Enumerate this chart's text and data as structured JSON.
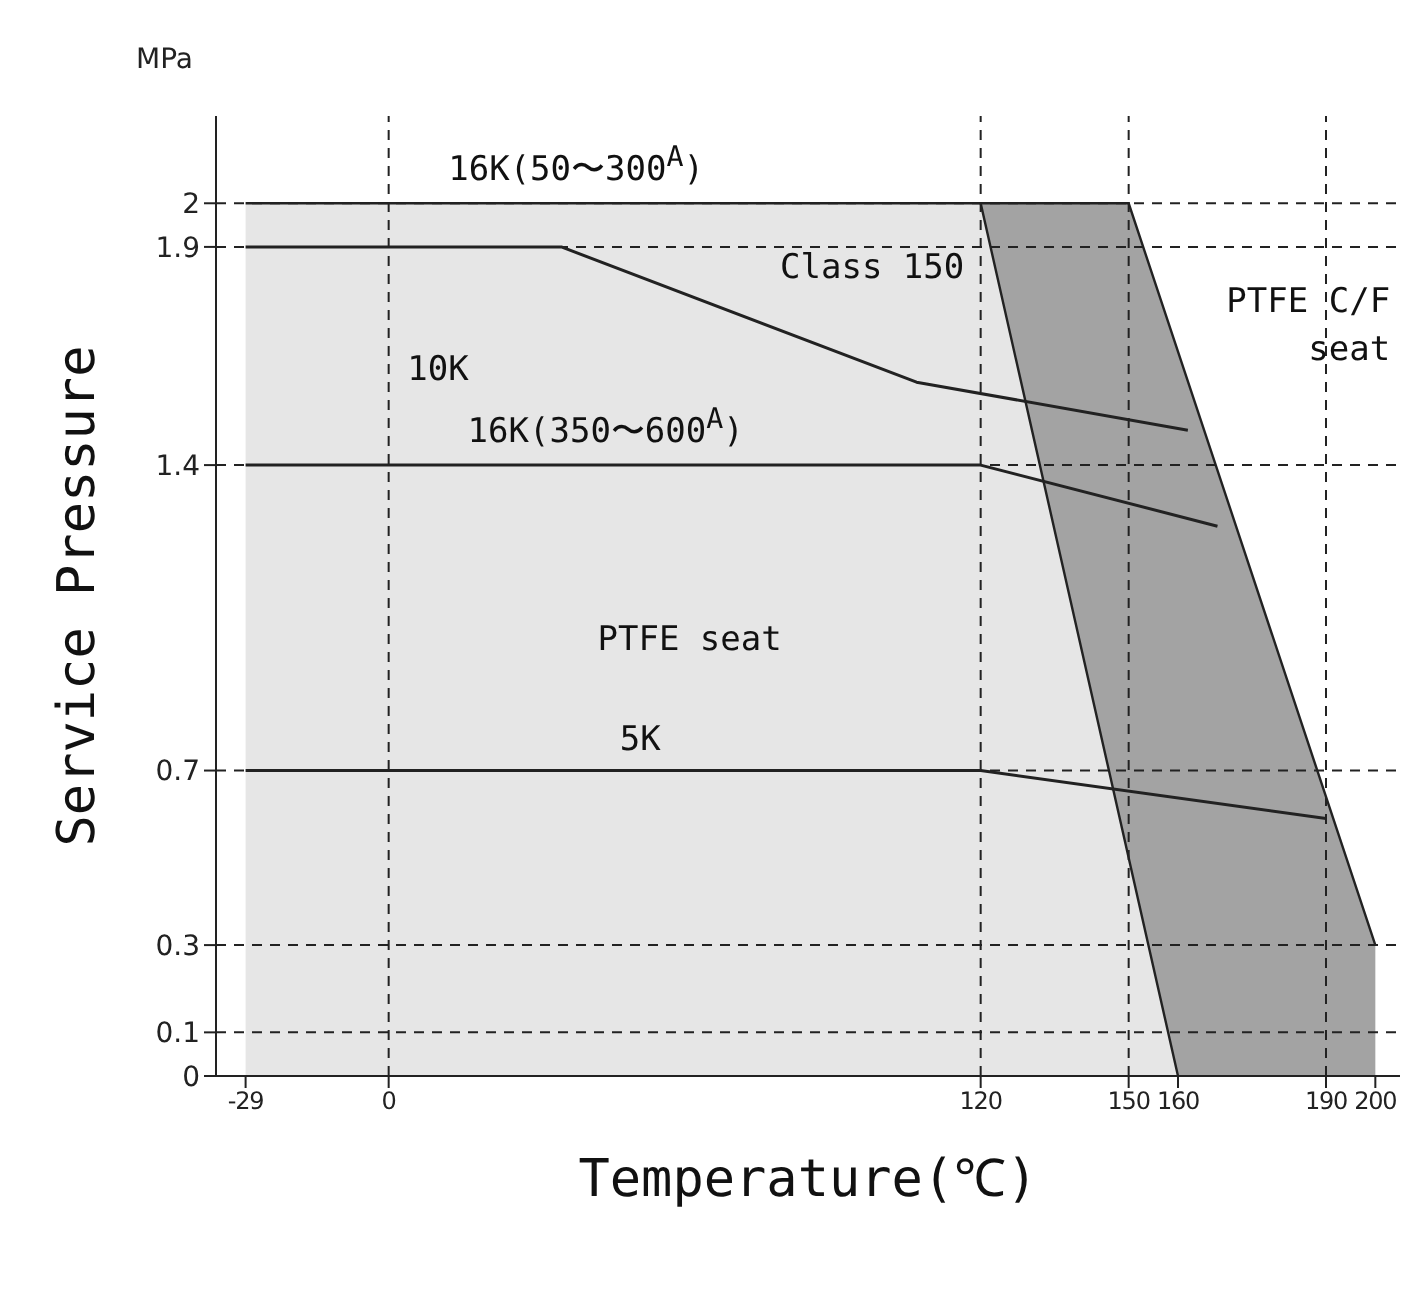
{
  "chart_data": {
    "type": "line",
    "xlabel": "Temperature(℃)",
    "ylabel": "Service Pressure",
    "xlim": [
      -35,
      205
    ],
    "ylim": [
      0,
      2.2
    ],
    "xticks": [
      -29,
      0,
      120,
      150,
      160,
      190,
      200
    ],
    "yticks": [
      0,
      0.1,
      0.3,
      0.7,
      1.4,
      1.9,
      2.0
    ],
    "marker": "none",
    "line_style": "solid",
    "series": [
      {
        "type": "area",
        "color": "#a3a3a3",
        "x": [
          120,
          150,
          200
        ],
        "values": [
          2.0,
          2.0,
          0.3
        ]
      },
      {
        "type": "area",
        "color": "#e6e6e6",
        "x": [
          -29,
          120,
          160
        ],
        "values": [
          2.0,
          2.0,
          0
        ]
      },
      {
        "color": "#222222",
        "x": [
          -29,
          35,
          107,
          162
        ],
        "values": [
          1.9,
          1.9,
          1.59,
          1.48
        ]
      },
      {
        "color": "#222222",
        "x": [
          -29,
          120,
          168
        ],
        "values": [
          1.4,
          1.4,
          1.26
        ]
      },
      {
        "color": "#222222",
        "x": [
          -29,
          120,
          190
        ],
        "values": [
          0.7,
          0.7,
          0.59
        ]
      }
    ],
    "ref_lines": [
      {
        "axis": "y",
        "value": 2.0,
        "line_style": "dashed",
        "color": "#222222"
      },
      {
        "axis": "y",
        "value": 1.9,
        "line_style": "dashed",
        "color": "#222222"
      },
      {
        "axis": "y",
        "value": 1.4,
        "line_style": "dashed",
        "color": "#222222"
      },
      {
        "axis": "y",
        "value": 0.7,
        "line_style": "dashed",
        "color": "#222222"
      },
      {
        "axis": "y",
        "value": 0.3,
        "line_style": "dashed",
        "color": "#222222"
      },
      {
        "axis": "y",
        "value": 0.1,
        "line_style": "dashed",
        "color": "#222222"
      },
      {
        "axis": "x",
        "value": 0,
        "line_style": "dashed",
        "color": "#222222"
      },
      {
        "axis": "x",
        "value": 120,
        "line_style": "dashed",
        "color": "#222222"
      },
      {
        "axis": "x",
        "value": 150,
        "line_style": "dashed",
        "color": "#222222"
      },
      {
        "axis": "x",
        "value": 190,
        "line_style": "dashed",
        "color": "#222222"
      }
    ],
    "annotations": [
      "MPa",
      "16K(50〜300$^{A}$)",
      "Class 150",
      "10K",
      "16K(350〜600$^{A}$)",
      "PTFE seat",
      "5K",
      "PTFE C/F seat"
    ]
  }
}
